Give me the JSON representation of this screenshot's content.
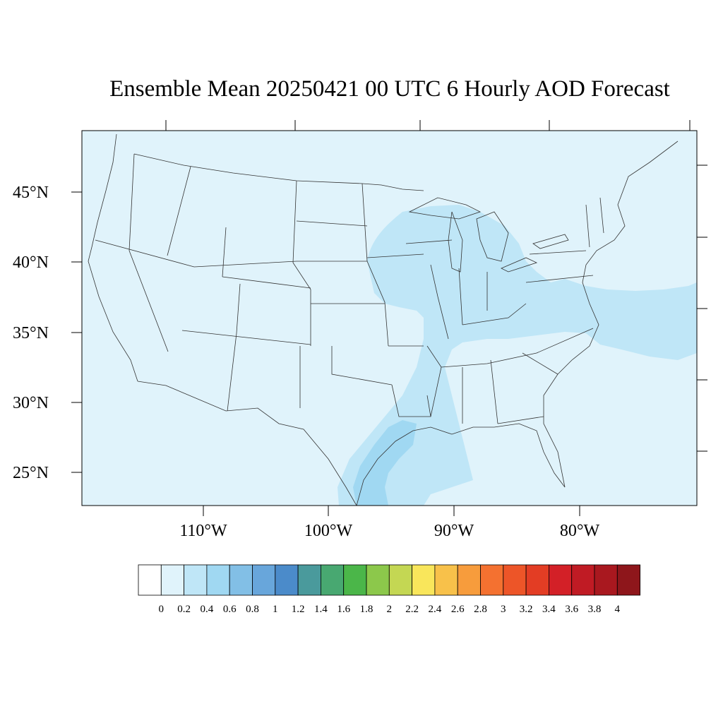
{
  "title": "Ensemble Mean 20250421 00 UTC 6 Hourly AOD Forecast",
  "latitude_labels": [
    "45°N",
    "40°N",
    "35°N",
    "30°N",
    "25°N"
  ],
  "longitude_labels": [
    "110°W",
    "100°W",
    "90°W",
    "80°W"
  ],
  "colorbar": {
    "labels": [
      "0",
      "0.2",
      "0.4",
      "0.6",
      "0.8",
      "1",
      "1.2",
      "1.4",
      "1.6",
      "1.8",
      "2",
      "2.2",
      "2.4",
      "2.6",
      "2.8",
      "3",
      "3.2",
      "3.4",
      "3.6",
      "3.8",
      "4"
    ],
    "colors": [
      "#ffffff",
      "#e0f3fb",
      "#bfe6f7",
      "#a0d8f2",
      "#82bfe6",
      "#68a6db",
      "#4b8bca",
      "#4a9a9c",
      "#48a871",
      "#4bb649",
      "#8cc84b",
      "#c4d753",
      "#f9e65b",
      "#f8c14a",
      "#f79c3c",
      "#f47130",
      "#ed5528",
      "#e33d24",
      "#d32027",
      "#c01b24",
      "#a9181f",
      "#8e161b"
    ]
  },
  "map_colors": {
    "background_band": "#e0f3fb",
    "level_04": "#bfe6f7",
    "level_06": "#a0d8f2",
    "borders": "#333333"
  }
}
